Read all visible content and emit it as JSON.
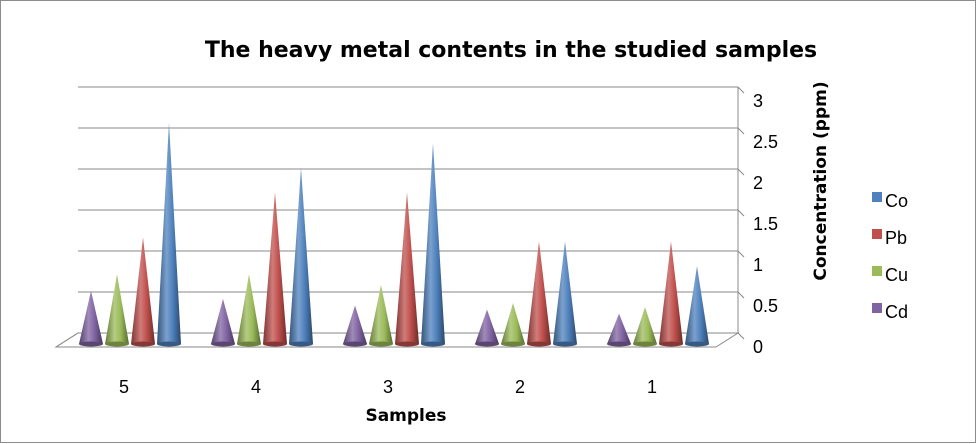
{
  "chart_data": {
    "type": "bar",
    "style": "3d-cone",
    "title": "The heavy metal contents in the studied samples",
    "xlabel": "Samples",
    "ylabel": "Concentration (ppm)",
    "categories": [
      "5",
      "4",
      "3",
      "2",
      "1"
    ],
    "y_ticks": [
      "0",
      "0.5",
      "1",
      "1.5",
      "2",
      "2.5",
      "3"
    ],
    "ylim": [
      0,
      3
    ],
    "grid": true,
    "legend_position": "right",
    "series": [
      {
        "name": "Cd",
        "color": "#8064a2",
        "values": [
          0.65,
          0.55,
          0.47,
          0.42,
          0.37
        ]
      },
      {
        "name": "Cu",
        "color": "#9bbb59",
        "values": [
          0.85,
          0.85,
          0.72,
          0.5,
          0.45
        ]
      },
      {
        "name": "Pb",
        "color": "#c0504d",
        "values": [
          1.3,
          1.85,
          1.85,
          1.25,
          1.25
        ]
      },
      {
        "name": "Co",
        "color": "#4f81bd",
        "values": [
          2.7,
          2.15,
          2.45,
          1.25,
          0.95
        ]
      }
    ],
    "legend_order": [
      "Co",
      "Pb",
      "Cu",
      "Cd"
    ]
  }
}
